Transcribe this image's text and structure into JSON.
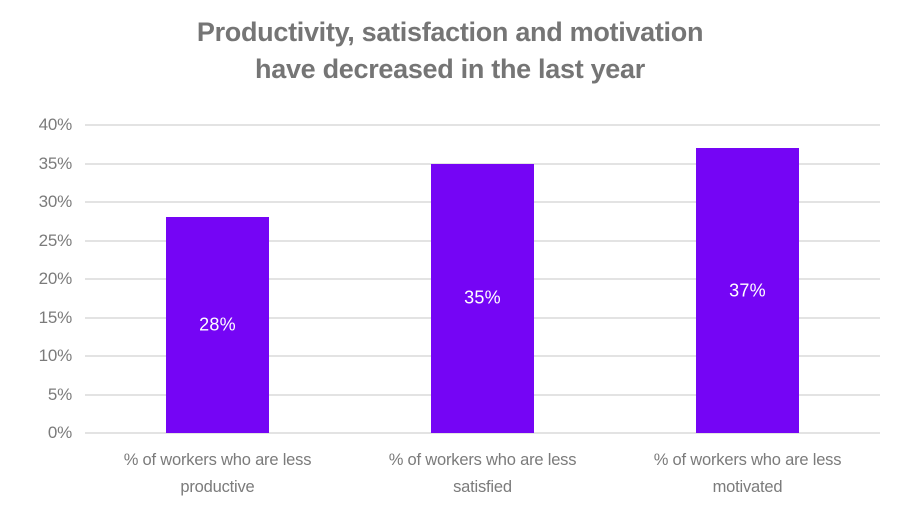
{
  "chart": {
    "title_line1": "Productivity, satisfaction and motivation",
    "title_line2": "have decreased in the last year"
  },
  "chart_data": {
    "type": "bar",
    "title": "Productivity, satisfaction and motivation have decreased in the last year",
    "categories": [
      "% of workers who are less productive",
      "% of workers who are less satisfied",
      "% of workers who are less motivated"
    ],
    "values": [
      28,
      35,
      37
    ],
    "value_labels": [
      "28%",
      "35%",
      "37%"
    ],
    "xlabel": "",
    "ylabel": "",
    "ylim": [
      0,
      40
    ],
    "ytick_step": 5,
    "ytick_labels": [
      "0%",
      "5%",
      "10%",
      "15%",
      "20%",
      "25%",
      "30%",
      "35%",
      "40%"
    ],
    "grid": true,
    "legend": "none",
    "colors": {
      "bar": "#7505F5",
      "bar_value_label": "#ffffff",
      "gridline": "#e3e3e3",
      "axis_text": "#7b7b7b",
      "title_text": "#757575",
      "background": "#ffffff"
    }
  }
}
